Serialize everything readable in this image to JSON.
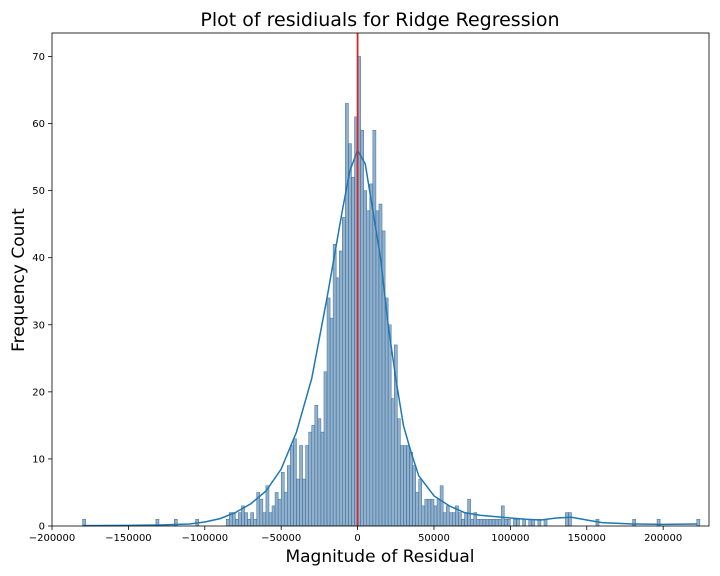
{
  "chart_data": {
    "type": "bar",
    "title": "Plot of residiuals for Ridge Regression",
    "xlabel": "Magnitude of Residual",
    "ylabel": "Frequency Count",
    "xlim": [
      -200000,
      230000
    ],
    "ylim": [
      0,
      73.5
    ],
    "xticks": [
      -200000,
      -150000,
      -100000,
      -50000,
      0,
      50000,
      100000,
      150000,
      200000
    ],
    "yticks": [
      0,
      10,
      20,
      30,
      40,
      50,
      60,
      70
    ],
    "bin_width": 2000,
    "bins": [
      [
        -180000,
        1
      ],
      [
        -132000,
        1
      ],
      [
        -120000,
        1
      ],
      [
        -106000,
        1
      ],
      [
        -86000,
        1
      ],
      [
        -84000,
        2
      ],
      [
        -82000,
        2
      ],
      [
        -80000,
        1
      ],
      [
        -78000,
        2
      ],
      [
        -76000,
        3
      ],
      [
        -74000,
        2
      ],
      [
        -72000,
        1
      ],
      [
        -70000,
        2
      ],
      [
        -68000,
        1
      ],
      [
        -66000,
        5
      ],
      [
        -64000,
        4
      ],
      [
        -62000,
        2
      ],
      [
        -60000,
        6
      ],
      [
        -58000,
        2
      ],
      [
        -56000,
        3
      ],
      [
        -54000,
        5
      ],
      [
        -52000,
        4
      ],
      [
        -50000,
        8
      ],
      [
        -48000,
        5
      ],
      [
        -46000,
        9
      ],
      [
        -44000,
        12
      ],
      [
        -42000,
        13
      ],
      [
        -40000,
        7
      ],
      [
        -38000,
        12
      ],
      [
        -36000,
        7
      ],
      [
        -34000,
        12
      ],
      [
        -32000,
        14
      ],
      [
        -30000,
        15
      ],
      [
        -28000,
        18
      ],
      [
        -26000,
        16
      ],
      [
        -24000,
        14
      ],
      [
        -22000,
        23
      ],
      [
        -20000,
        34
      ],
      [
        -18000,
        31
      ],
      [
        -16000,
        42
      ],
      [
        -14000,
        37
      ],
      [
        -12000,
        41
      ],
      [
        -10000,
        46
      ],
      [
        -8000,
        63
      ],
      [
        -6000,
        57
      ],
      [
        -4000,
        52
      ],
      [
        -2000,
        61
      ],
      [
        0,
        70
      ],
      [
        2000,
        59
      ],
      [
        4000,
        50
      ],
      [
        6000,
        47
      ],
      [
        8000,
        51
      ],
      [
        10000,
        59
      ],
      [
        12000,
        47
      ],
      [
        14000,
        48
      ],
      [
        16000,
        44
      ],
      [
        18000,
        34
      ],
      [
        20000,
        30
      ],
      [
        22000,
        19
      ],
      [
        24000,
        27
      ],
      [
        26000,
        16
      ],
      [
        28000,
        12
      ],
      [
        30000,
        12
      ],
      [
        32000,
        12
      ],
      [
        34000,
        11
      ],
      [
        36000,
        9
      ],
      [
        38000,
        5
      ],
      [
        40000,
        7
      ],
      [
        42000,
        3
      ],
      [
        44000,
        4
      ],
      [
        46000,
        4
      ],
      [
        48000,
        4
      ],
      [
        50000,
        3
      ],
      [
        52000,
        4
      ],
      [
        54000,
        6
      ],
      [
        56000,
        2
      ],
      [
        58000,
        3
      ],
      [
        60000,
        2
      ],
      [
        62000,
        2
      ],
      [
        64000,
        3
      ],
      [
        66000,
        2
      ],
      [
        68000,
        1
      ],
      [
        70000,
        2
      ],
      [
        72000,
        4
      ],
      [
        74000,
        1
      ],
      [
        76000,
        2
      ],
      [
        78000,
        1
      ],
      [
        80000,
        1
      ],
      [
        82000,
        1
      ],
      [
        84000,
        1
      ],
      [
        86000,
        1
      ],
      [
        88000,
        1
      ],
      [
        90000,
        1
      ],
      [
        92000,
        1
      ],
      [
        94000,
        3
      ],
      [
        96000,
        1
      ],
      [
        98000,
        1
      ],
      [
        102000,
        1
      ],
      [
        104000,
        1
      ],
      [
        108000,
        1
      ],
      [
        112000,
        1
      ],
      [
        114000,
        1
      ],
      [
        118000,
        1
      ],
      [
        122000,
        1
      ],
      [
        136000,
        2
      ],
      [
        138000,
        2
      ],
      [
        156000,
        1
      ],
      [
        180000,
        1
      ],
      [
        196000,
        1
      ],
      [
        222000,
        1
      ]
    ],
    "kde": [
      [
        -180000,
        0.05
      ],
      [
        -150000,
        0.1
      ],
      [
        -130000,
        0.15
      ],
      [
        -110000,
        0.3
      ],
      [
        -100000,
        0.6
      ],
      [
        -90000,
        1.1
      ],
      [
        -80000,
        2.0
      ],
      [
        -70000,
        3.3
      ],
      [
        -60000,
        5.2
      ],
      [
        -50000,
        8.5
      ],
      [
        -40000,
        14
      ],
      [
        -30000,
        22
      ],
      [
        -20000,
        34
      ],
      [
        -10000,
        47
      ],
      [
        -5000,
        53
      ],
      [
        0,
        56
      ],
      [
        5000,
        54
      ],
      [
        10000,
        47
      ],
      [
        15000,
        40
      ],
      [
        20000,
        30
      ],
      [
        25000,
        22
      ],
      [
        30000,
        15
      ],
      [
        35000,
        11
      ],
      [
        40000,
        7.5
      ],
      [
        50000,
        4.5
      ],
      [
        60000,
        3
      ],
      [
        70000,
        2
      ],
      [
        80000,
        1.6
      ],
      [
        90000,
        1.4
      ],
      [
        100000,
        1.2
      ],
      [
        110000,
        1
      ],
      [
        120000,
        0.9
      ],
      [
        130000,
        1.2
      ],
      [
        140000,
        1.3
      ],
      [
        150000,
        0.9
      ],
      [
        160000,
        0.5
      ],
      [
        180000,
        0.3
      ],
      [
        200000,
        0.25
      ],
      [
        222000,
        0.3
      ]
    ],
    "reference_line_x": 0,
    "colors": {
      "bar_fill": "#6b96bb",
      "bar_stroke": "#3d6d98",
      "kde": "#1f77b4",
      "reference_line": "#d62728"
    },
    "grid": false,
    "legend": "none"
  }
}
